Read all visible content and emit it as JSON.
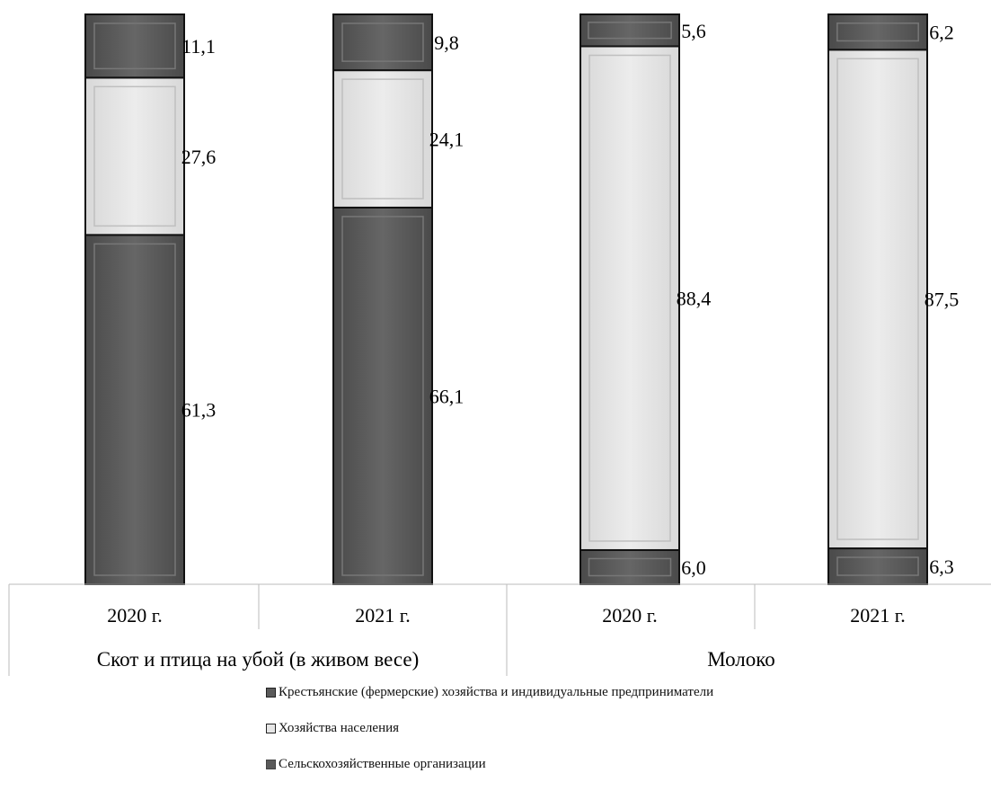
{
  "chart_data": {
    "type": "bar",
    "stacked": true,
    "categories": [
      "2020 г.",
      "2021 г.",
      "2020 г.",
      "2021 г."
    ],
    "groups": [
      {
        "label": "Скот и птица на убой (в живом весе)",
        "span": [
          0,
          1
        ]
      },
      {
        "label": "Молоко",
        "span": [
          2,
          3
        ]
      }
    ],
    "series": [
      {
        "name": "Сельскохозяйственные организации",
        "values": [
          61.3,
          66.1,
          6.0,
          6.3
        ],
        "labels": [
          "61,3",
          "66,1",
          "6,0",
          "6,3"
        ],
        "color": "#5a5a5a"
      },
      {
        "name": "Хозяйства населения",
        "values": [
          27.6,
          24.1,
          88.4,
          87.5
        ],
        "labels": [
          "27,6",
          "24,1",
          "88,4",
          "87,5"
        ],
        "color": "#e6e6e6"
      },
      {
        "name": "Крестьянские (фермерские) хозяйства и индивидуальные предприниматели",
        "values": [
          11.1,
          9.8,
          5.6,
          6.2
        ],
        "labels": [
          "11,1",
          "9,8",
          "5,6",
          "6,2"
        ],
        "color": "#5a5a5a"
      }
    ],
    "legend_order": [
      2,
      1,
      0
    ],
    "ylim": [
      0,
      100
    ],
    "grid": false,
    "legend_position": "bottom"
  }
}
